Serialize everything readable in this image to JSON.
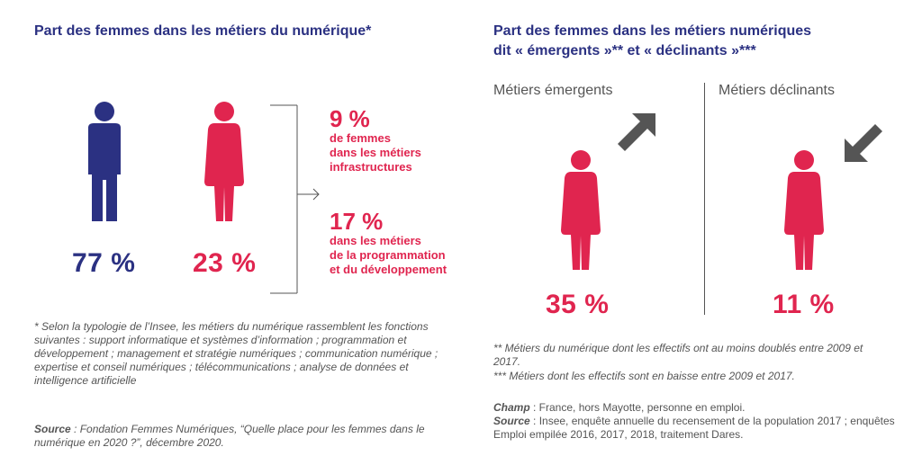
{
  "left": {
    "title": "Part des femmes dans les métiers du numérique*",
    "men_percent": "77 %",
    "women_percent": "23 %",
    "stat1": {
      "value": "9 %",
      "line1": "de femmes",
      "line2": "dans les métiers",
      "line3": "infrastructures"
    },
    "stat2": {
      "value": "17 %",
      "line1": "dans les métiers",
      "line2": "de la programmation",
      "line3": "et du développement"
    },
    "footnote": "* Selon la typologie de l’Insee, les métiers du numérique rassemblent les fonctions suivantes : support informatique et systèmes d’information ; programmation et développement ; management et stratégie numériques ; communication numérique ; expertise et conseil numériques ; télécommunications ; analyse de données et intelligence artificielle",
    "source_label": "Source",
    "source_text": " : Fondation Femmes Numériques, “Quelle place pour les femmes dans le numérique en 2020 ?”, décembre 2020."
  },
  "right": {
    "title_line1": "Part des femmes dans les métiers numériques",
    "title_line2": "dit « émergents »** et « déclinants »***",
    "emerging_label": "Métiers émergents",
    "declining_label": "Métiers déclinants",
    "emerging_percent": "35 %",
    "declining_percent": "11 %",
    "note1": "** Métiers du numérique dont les effectifs ont au moins doublés entre 2009 et 2017.",
    "note2": "*** Métiers dont les effectifs sont en baisse entre 2009 et 2017.",
    "champ_label": "Champ",
    "champ_text": " : France, hors Mayotte, personne en emploi.",
    "source_label": "Source",
    "source_text": " : Insee, enquête annuelle du recensement de la population 2017 ; enquêtes Emploi empilée 2016, 2017, 2018, traitement Dares."
  },
  "colors": {
    "navy": "#2b3182",
    "red": "#e0254f",
    "arrow": "#555555"
  },
  "icons": [
    "man-icon",
    "woman-icon",
    "arrow-up-right-icon",
    "arrow-down-left-icon",
    "bracket-arrow-icon"
  ]
}
